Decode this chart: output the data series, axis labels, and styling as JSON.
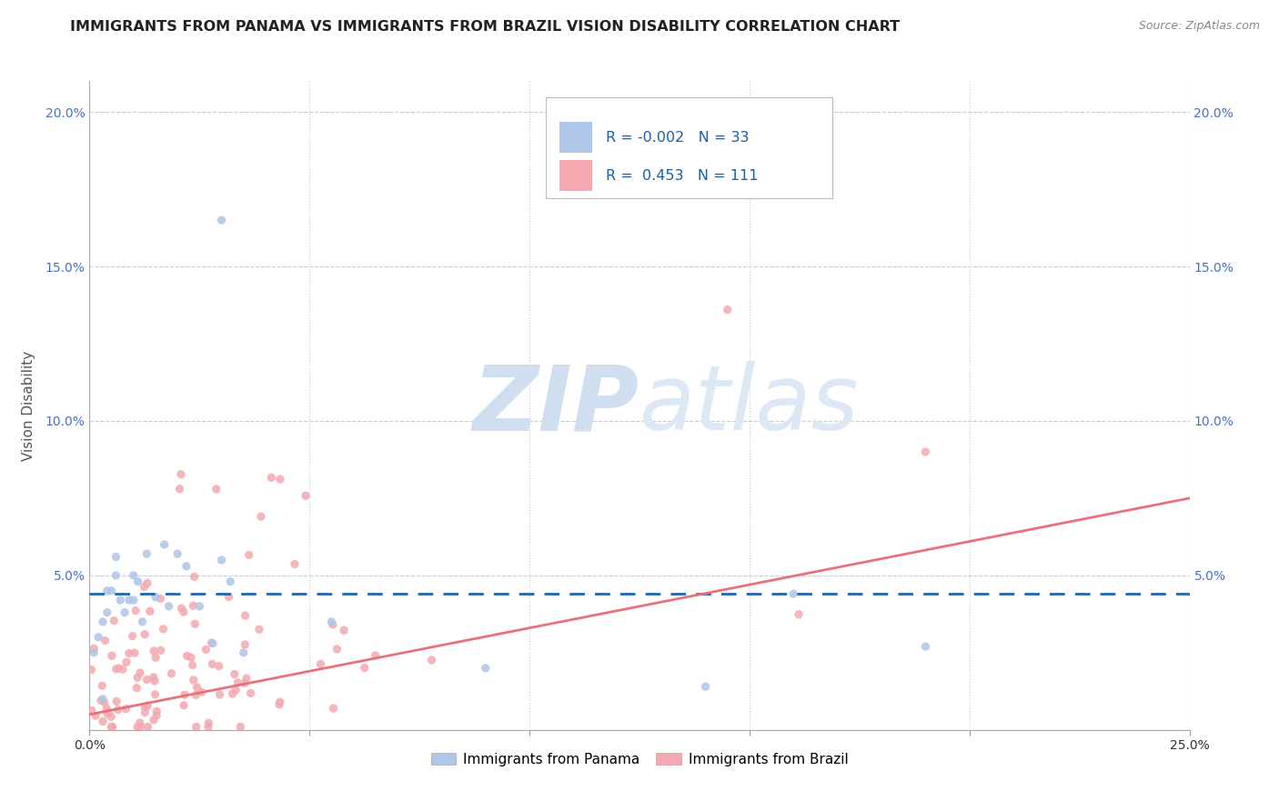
{
  "title": "IMMIGRANTS FROM PANAMA VS IMMIGRANTS FROM BRAZIL VISION DISABILITY CORRELATION CHART",
  "source_text": "Source: ZipAtlas.com",
  "ylabel": "Vision Disability",
  "xlim": [
    0.0,
    0.25
  ],
  "ylim": [
    0.0,
    0.21
  ],
  "x_ticks": [
    0.0,
    0.05,
    0.1,
    0.15,
    0.2,
    0.25
  ],
  "x_tick_labels": [
    "0.0%",
    "",
    "",
    "",
    "",
    "25.0%"
  ],
  "y_ticks": [
    0.0,
    0.05,
    0.1,
    0.15,
    0.2
  ],
  "y_tick_labels": [
    "",
    "5.0%",
    "10.0%",
    "15.0%",
    "20.0%"
  ],
  "panama_color": "#aec6e8",
  "brazil_color": "#f4a9b0",
  "panama_line_color": "#2166ac",
  "brazil_line_color": "#e8727a",
  "legend_R_panama": "-0.002",
  "legend_N_panama": "33",
  "legend_R_brazil": "0.453",
  "legend_N_brazil": "111",
  "watermark_zip": "ZIP",
  "watermark_atlas": "atlas",
  "watermark_color": "#d0dff0",
  "legend_label_panama": "Immigrants from Panama",
  "legend_label_brazil": "Immigrants from Brazil",
  "panama_line_y_start": 0.044,
  "panama_line_y_end": 0.044,
  "brazil_line_y_start": 0.005,
  "brazil_line_y_end": 0.075,
  "background_color": "#ffffff",
  "grid_color": "#cccccc",
  "tick_color": "#4472c4",
  "title_color": "#222222",
  "title_fontsize": 11.5,
  "source_fontsize": 9,
  "ylabel_fontsize": 11,
  "tick_fontsize": 10
}
